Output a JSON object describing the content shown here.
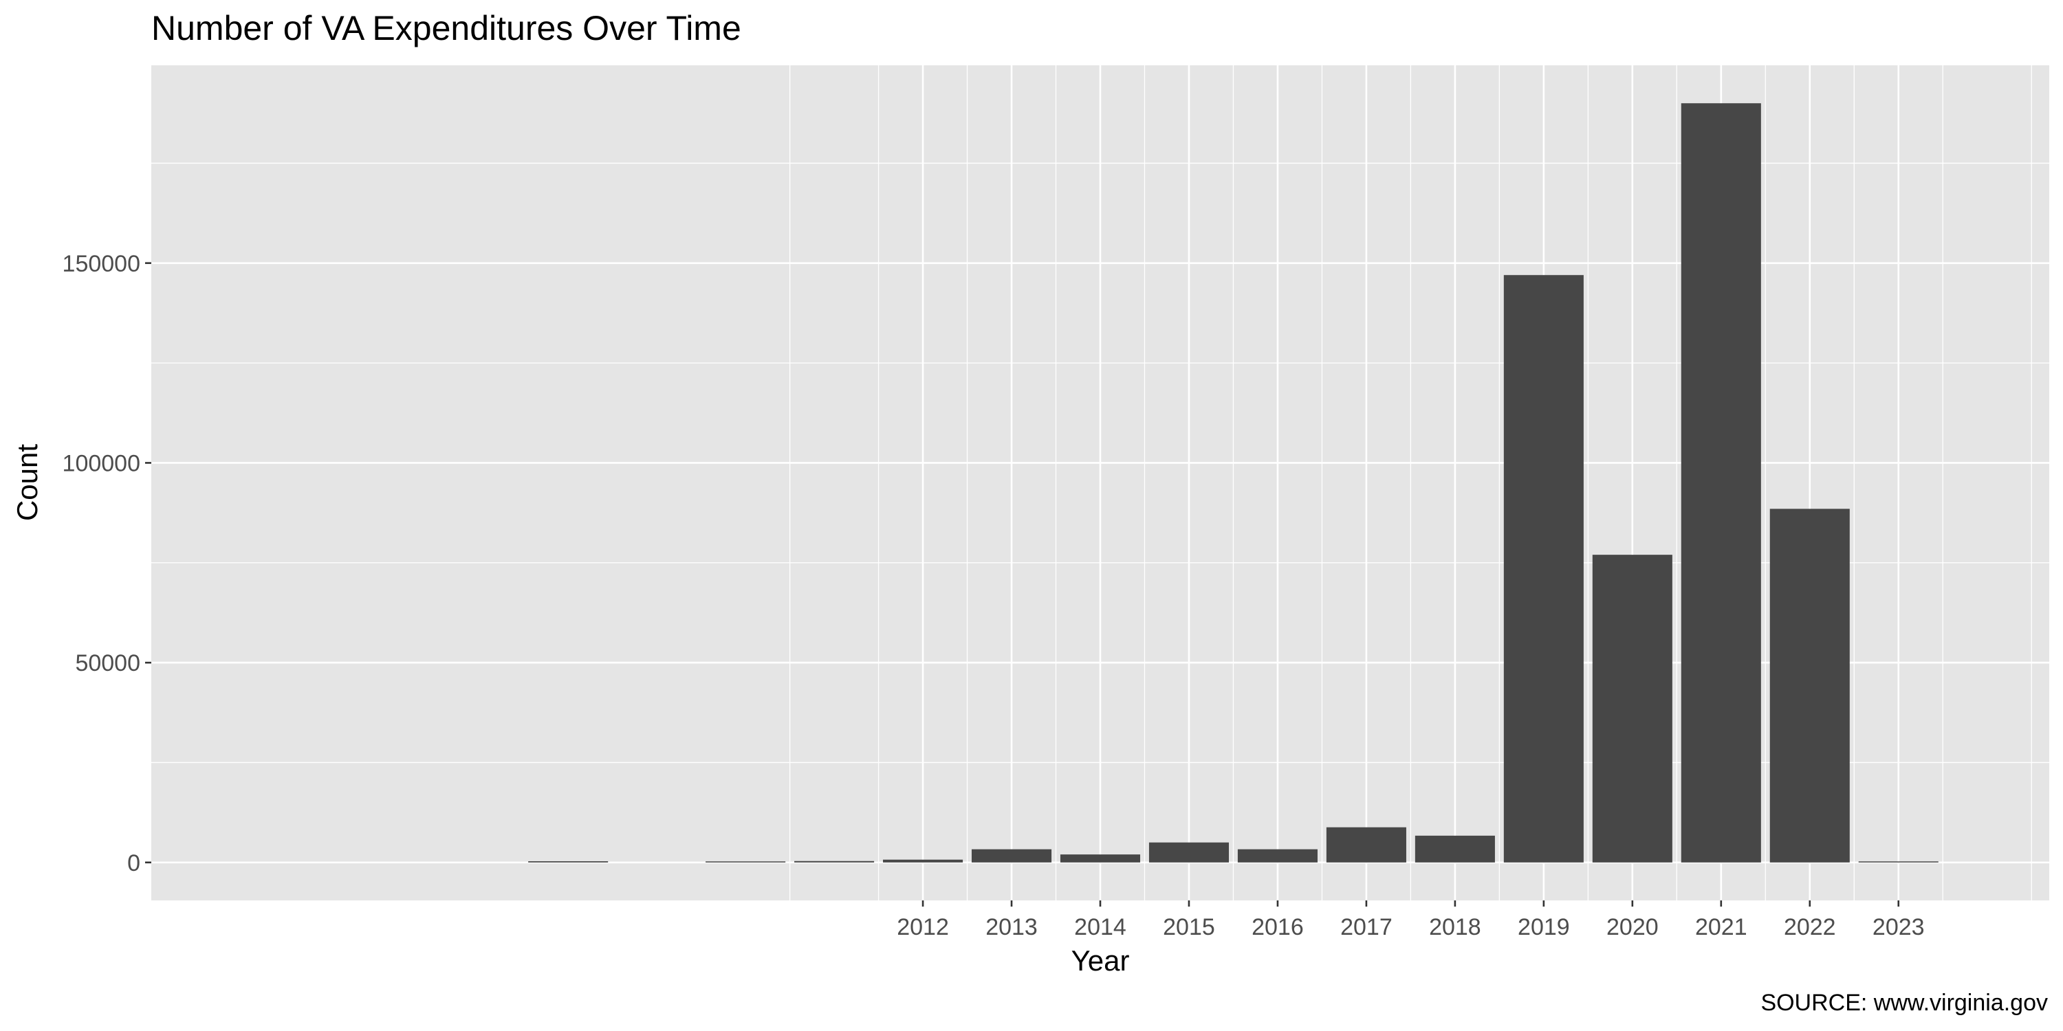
{
  "chart_data": {
    "type": "bar",
    "title": "Number of VA Expenditures Over Time",
    "xlabel": "Year",
    "ylabel": "Count",
    "caption": "SOURCE: www.virginia.gov",
    "x": [
      2008,
      2010,
      2011,
      2012,
      2013,
      2014,
      2015,
      2016,
      2017,
      2018,
      2019,
      2020,
      2021,
      2022,
      2023
    ],
    "values": [
      300,
      150,
      350,
      700,
      3300,
      2000,
      5000,
      3300,
      8800,
      6700,
      147000,
      77000,
      190000,
      88500,
      50
    ],
    "x_tick_labels": [
      "2012",
      "2013",
      "2014",
      "2015",
      "2016",
      "2017",
      "2018",
      "2019",
      "2020",
      "2021",
      "2022",
      "2023"
    ],
    "y_ticks": [
      0,
      50000,
      100000,
      150000
    ],
    "y_tick_labels": [
      "0",
      "50000",
      "100000",
      "150000"
    ],
    "xlim": [
      2003.3,
      2024.7
    ],
    "ylim": [
      -9500,
      199500
    ],
    "grid": true,
    "legend": "none",
    "colors": {
      "panel": "#e5e5e5",
      "grid": "#ffffff",
      "bar": "#474747",
      "tick_text": "#4d4d4d"
    }
  }
}
